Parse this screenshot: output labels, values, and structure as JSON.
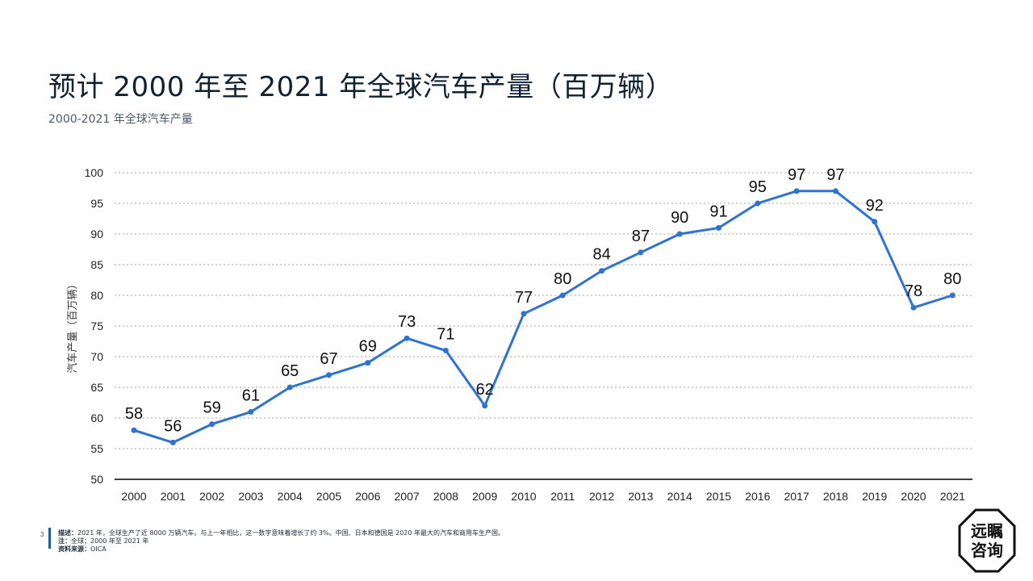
{
  "header": {
    "title": "预计 2000 年至 2021 年全球汽车产量（百万辆）",
    "subtitle": "2000-2021 年全球汽车产量"
  },
  "chart_data": {
    "type": "line",
    "x": [
      "2000",
      "2001",
      "2002",
      "2003",
      "2004",
      "2005",
      "2006",
      "2007",
      "2008",
      "2009",
      "2010",
      "2011",
      "2012",
      "2013",
      "2014",
      "2015",
      "2016",
      "2017",
      "2018",
      "2019",
      "2020",
      "2021"
    ],
    "series": [
      {
        "values": [
          58,
          56,
          59,
          61,
          65,
          67,
          69,
          73,
          71,
          62,
          77,
          80,
          84,
          87,
          90,
          91,
          95,
          97,
          97,
          92,
          78,
          80
        ]
      }
    ],
    "ylabel": "汽车产量（百万辆）",
    "ylim": [
      50,
      100
    ],
    "yticks": [
      50,
      55,
      60,
      65,
      70,
      75,
      80,
      85,
      90,
      95,
      100
    ],
    "grid": true,
    "data_labels": true,
    "line_color": "#2e72d2"
  },
  "footer": {
    "page_number": "3",
    "note_description_label": "描述：",
    "note_description": "2021 年，全球生产了近 8000 万辆汽车。与上一年相比，这一数字意味着增长了约 3%。中国、日本和德国是 2020 年最大的汽车和商用车生产国。",
    "note_label": "注：",
    "note": "全球；2000 年至 2021 年",
    "source_label": "资料来源：",
    "source": "OICA"
  },
  "logo": {
    "line1": "远瞩",
    "line2": "咨询"
  }
}
